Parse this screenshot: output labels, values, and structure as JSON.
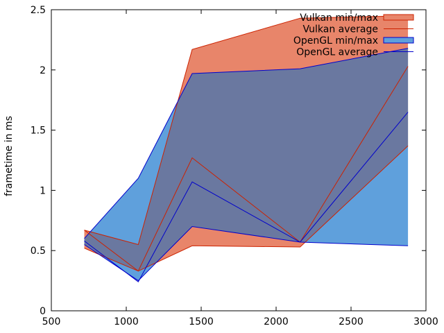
{
  "chart_data": {
    "type": "area",
    "title": "",
    "xlabel": "",
    "ylabel": "frametime in ms",
    "xlim": [
      500,
      3000
    ],
    "ylim": [
      0,
      2.5
    ],
    "grid": false,
    "legend_position": "top-right",
    "x_ticks": [
      500,
      1000,
      1500,
      2000,
      2500,
      3000
    ],
    "y_ticks": [
      0,
      0.5,
      1,
      1.5,
      2,
      2.5
    ],
    "x_tick_labels": [
      "500",
      "1000",
      "1500",
      "2000",
      "2500",
      "3000"
    ],
    "y_tick_labels": [
      "0",
      "0.5",
      "1",
      "1.5",
      "2",
      "2.5"
    ],
    "colors": {
      "vulkan_fill": "#e8856a",
      "vulkan_line": "#cc2200",
      "opengl_fill": "#5fa0dc",
      "opengl_line": "#0000cc",
      "overlap_fill": "#6a78a0"
    },
    "series": [
      {
        "name": "Vulkan min/max",
        "kind": "band",
        "x": [
          720,
          1080,
          1440,
          2160,
          2880
        ],
        "low": [
          0.52,
          0.33,
          0.54,
          0.53,
          1.37
        ],
        "high": [
          0.67,
          0.55,
          2.17,
          2.43,
          2.45
        ]
      },
      {
        "name": "Vulkan average",
        "kind": "line",
        "x": [
          720,
          1080,
          1440,
          2160,
          2880
        ],
        "values": [
          0.67,
          0.33,
          1.27,
          0.57,
          2.03
        ]
      },
      {
        "name": "OpenGL min/max",
        "kind": "band",
        "x": [
          720,
          1080,
          1440,
          2160,
          2880
        ],
        "low": [
          0.55,
          0.25,
          0.7,
          0.57,
          0.54
        ],
        "high": [
          0.6,
          1.1,
          1.97,
          2.01,
          2.18
        ]
      },
      {
        "name": "OpenGL average",
        "kind": "line",
        "x": [
          720,
          1080,
          1440,
          2160,
          2880
        ],
        "values": [
          0.58,
          0.24,
          1.07,
          0.57,
          1.65
        ]
      }
    ]
  }
}
